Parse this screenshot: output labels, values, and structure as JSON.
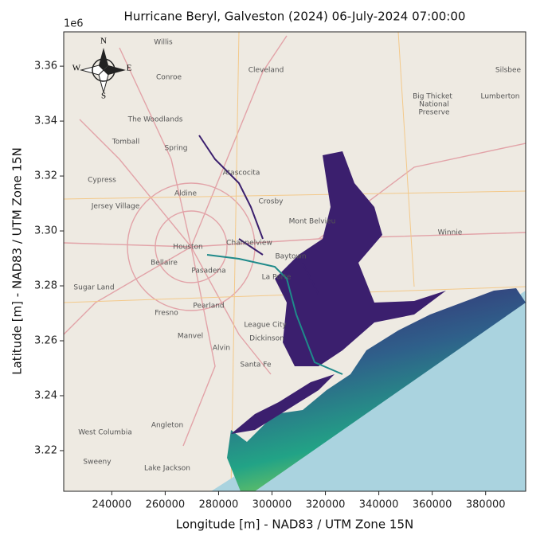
{
  "chart_data": {
    "type": "map",
    "title": "Hurricane Beryl, Galveston (2024) 06-July-2024 07:00:00",
    "xlabel": "Longitude [m] - NAD83 / UTM Zone 15N",
    "ylabel": "Latitude [m] - NAD83 / UTM Zone 15N",
    "y_offset_label": "1e6",
    "xlim": [
      222000,
      395000
    ],
    "ylim": [
      3205200,
      3372500
    ],
    "xticks": [
      240000,
      260000,
      280000,
      300000,
      320000,
      340000,
      360000,
      380000
    ],
    "yticks": [
      {
        "value": 3220000,
        "label": "3.22"
      },
      {
        "value": 3240000,
        "label": "3.24"
      },
      {
        "value": 3260000,
        "label": "3.26"
      },
      {
        "value": 3280000,
        "label": "3.28"
      },
      {
        "value": 3300000,
        "label": "3.30"
      },
      {
        "value": 3320000,
        "label": "3.32"
      },
      {
        "value": 3340000,
        "label": "3.34"
      },
      {
        "value": 3360000,
        "label": "3.36"
      }
    ],
    "compass": [
      "N",
      "S",
      "W",
      "E"
    ],
    "places": [
      "Willis",
      "Conroe",
      "Cleveland",
      "Silsbee",
      "The Woodlands",
      "Tomball",
      "Spring",
      "Big Thicket",
      "National",
      "Preserve",
      "Lumberton",
      "Atascocita",
      "Cypress",
      "Aldine",
      "Crosby",
      "Jersey Village",
      "Mont Belvieu",
      "Winnie",
      "Houston",
      "Channelview",
      "Baytown",
      "Bellaire",
      "Pasadena",
      "Sugar Land",
      "La Porte",
      "Pearland",
      "Fresno",
      "League City",
      "Manvel",
      "Alvin",
      "Dickinson",
      "Santa Fe",
      "Angleton",
      "West Columbia",
      "Sweeny",
      "Lake Jackson"
    ]
  }
}
